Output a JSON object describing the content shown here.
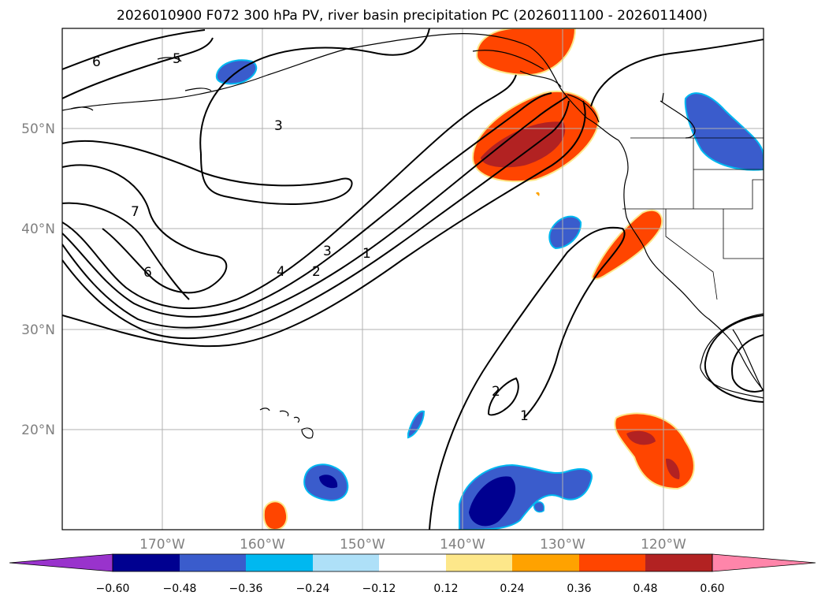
{
  "title": "2026010900 F072 300 hPa PV, river basin precipitation PC (2026011100 - 2026011400)",
  "lat_labels": [
    "50°N",
    "40°N",
    "30°N",
    "20°N"
  ],
  "lon_labels": [
    "170°W",
    "160°W",
    "150°W",
    "140°W",
    "130°W",
    "120°W"
  ],
  "contour_labels": [
    "6",
    "5",
    "3",
    "7",
    "6",
    "4",
    "3",
    "2",
    "1",
    "2",
    "1"
  ],
  "colorbar": {
    "ticks": [
      "−0.60",
      "−0.48",
      "−0.36",
      "−0.24",
      "−0.12",
      "0.12",
      "0.24",
      "0.36",
      "0.48",
      "0.60"
    ],
    "colors": [
      "#9933cc",
      "#000090",
      "#3a5ccc",
      "#00b8f0",
      "#aee0f8",
      "#ffffff",
      "#fde78a",
      "#ffa200",
      "#ff4500",
      "#b22222",
      "#ff85aa"
    ]
  },
  "palette": {
    "strong_pos": "#b22222",
    "pos": "#ff4500",
    "weak_pos": "#ffa200",
    "neg": "#3a5ccc",
    "strong_neg": "#000090",
    "weak_neg": "#00b8f0"
  }
}
